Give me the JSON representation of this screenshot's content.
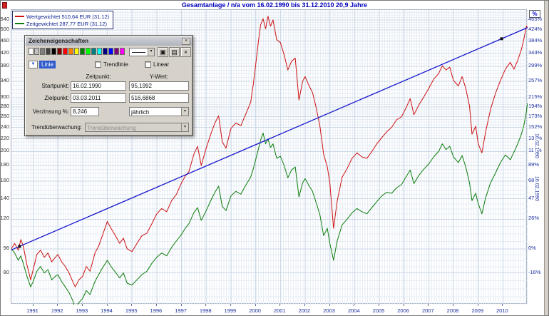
{
  "window": {
    "title": "Gesamtanlage / n/a vom 16.02.1990 bis 31.12.2010 20,9 Jahre"
  },
  "legend": {
    "items": [
      {
        "label": "Wertgewichtet 510,64 EUR (31.12)",
        "color": "#cc1111"
      },
      {
        "label": "Zeitgewichtet 287,77 EUR (31.12)",
        "color": "#0b7d0b"
      }
    ]
  },
  "axes": {
    "left_values": [
      540,
      500,
      460,
      420,
      380,
      340,
      300,
      280,
      260,
      240,
      220,
      200,
      180,
      160,
      140,
      120,
      96,
      80
    ],
    "right_labels": [
      "465%",
      "424%",
      "384%",
      "344%",
      "299%",
      "257%",
      "215%",
      "194%",
      "173%",
      "152%",
      "131%",
      "110%",
      "89%",
      "68%",
      "47%",
      "26%",
      "0%",
      "-16%"
    ],
    "right_header": "%",
    "years": [
      1991,
      1992,
      1993,
      1994,
      1995,
      1996,
      1997,
      1998,
      1999,
      2000,
      2001,
      2002,
      2003,
      2004,
      2005,
      2006,
      2007,
      2008,
      2009,
      2010
    ],
    "rotated_labels": [
      "16.02.1990",
      "16.02.1990"
    ]
  },
  "dialog": {
    "title": "Zeicheneigenschaften",
    "palette": [
      "#ffffff",
      "#c0c0c0",
      "#808080",
      "#404040",
      "#000000",
      "#800000",
      "#ff0000",
      "#ff8000",
      "#ffff00",
      "#008000",
      "#00ff00",
      "#008080",
      "#00ffff",
      "#000080",
      "#0000ff",
      "#800080",
      "#ff00ff"
    ],
    "line_selector_label": "Linie",
    "checkbox1": "Trendlinie",
    "checkbox2": "Linear",
    "header_time": "Zeitpunkt:",
    "header_y": "Y-Wert:",
    "start_label": "Startpunkt:",
    "start_time": "16.02.1990",
    "start_y": "95,1992",
    "end_label": "Zielpunkt:",
    "end_time": "03.03.2011",
    "end_y": "516,6868",
    "interest_label": "Verzinsung %:",
    "interest_value": "8,246",
    "interest_period": "jährlich",
    "monitor_label": "Trendüberwachung:",
    "monitor_value": "Trendüberwachung",
    "close_glyph": "×",
    "copy_glyph": "▣",
    "paste_glyph": "▤",
    "delete_glyph": "×"
  },
  "chart_data": {
    "type": "line",
    "title": "Gesamtanlage / n/a vom 16.02.1990 bis 31.12.2010 20,9 Jahre",
    "x_range": [
      1990.12,
      2011.0
    ],
    "y_scale": "log",
    "y_range": [
      63,
      582
    ],
    "legend_position": "top-left",
    "x": [
      1990.12,
      1990.25,
      1990.4,
      1990.5,
      1990.6,
      1990.75,
      1990.9,
      1991.0,
      1991.15,
      1991.3,
      1991.45,
      1991.6,
      1991.75,
      1991.9,
      1992.0,
      1992.15,
      1992.3,
      1992.45,
      1992.6,
      1992.7,
      1992.85,
      1993.0,
      1993.15,
      1993.3,
      1993.5,
      1993.65,
      1993.8,
      1994.0,
      1994.15,
      1994.3,
      1994.5,
      1994.65,
      1994.8,
      1995.0,
      1995.2,
      1995.4,
      1995.6,
      1995.8,
      1996.0,
      1996.2,
      1996.4,
      1996.6,
      1996.8,
      1997.0,
      1997.15,
      1997.3,
      1997.5,
      1997.65,
      1997.8,
      1998.0,
      1998.2,
      1998.35,
      1998.5,
      1998.65,
      1998.8,
      1999.0,
      1999.2,
      1999.4,
      1999.6,
      1999.8,
      1999.9,
      2000.0,
      2000.1,
      2000.2,
      2000.3,
      2000.4,
      2000.5,
      2000.6,
      2000.7,
      2000.85,
      2001.0,
      2001.15,
      2001.3,
      2001.45,
      2001.6,
      2001.75,
      2001.9,
      2002.0,
      2002.15,
      2002.3,
      2002.45,
      2002.6,
      2002.75,
      2002.9,
      2003.0,
      2003.15,
      2003.3,
      2003.5,
      2003.7,
      2003.9,
      2004.1,
      2004.3,
      2004.5,
      2004.7,
      2004.9,
      2005.1,
      2005.3,
      2005.5,
      2005.7,
      2005.9,
      2006.1,
      2006.25,
      2006.4,
      2006.6,
      2006.8,
      2007.0,
      2007.2,
      2007.4,
      2007.55,
      2007.7,
      2007.85,
      2008.0,
      2008.2,
      2008.35,
      2008.5,
      2008.65,
      2008.75,
      2008.9,
      2009.0,
      2009.15,
      2009.3,
      2009.5,
      2009.7,
      2009.9,
      2010.1,
      2010.3,
      2010.45,
      2010.6,
      2010.75,
      2010.85,
      2010.95,
      2010.99
    ],
    "series": [
      {
        "name": "Wertgewichtet",
        "color": "#cc1111",
        "values": [
          96,
          100,
          95,
          103,
          98,
          85,
          76,
          82,
          92,
          95,
          90,
          93,
          87,
          90,
          92,
          87,
          84,
          80,
          75,
          72,
          76,
          78,
          84,
          81,
          93,
          98,
          106,
          118,
          112,
          107,
          100,
          104,
          96,
          94,
          100,
          106,
          108,
          116,
          125,
          130,
          127,
          138,
          145,
          158,
          166,
          172,
          196,
          208,
          180,
          205,
          230,
          248,
          262,
          215,
          205,
          238,
          248,
          243,
          265,
          290,
          330,
          385,
          450,
          520,
          545,
          505,
          555,
          515,
          540,
          465,
          455,
          415,
          370,
          395,
          405,
          295,
          340,
          352,
          330,
          312,
          278,
          242,
          196,
          178,
          158,
          112,
          138,
          165,
          176,
          190,
          198,
          192,
          190,
          200,
          212,
          222,
          232,
          240,
          254,
          260,
          280,
          298,
          264,
          284,
          302,
          322,
          345,
          360,
          382,
          370,
          378,
          342,
          328,
          352,
          322,
          282,
          228,
          242,
          212,
          198,
          232,
          275,
          310,
          342,
          372,
          392,
          372,
          398,
          432,
          468,
          515,
          511
        ]
      },
      {
        "name": "Zeitgewichtet",
        "color": "#0b7d0b",
        "values": [
          96,
          93,
          88,
          91,
          86,
          78,
          72,
          75,
          81,
          84,
          80,
          82,
          76,
          78,
          79,
          75,
          72,
          69,
          65,
          61,
          64,
          66,
          70,
          68,
          75,
          79,
          83,
          88,
          84,
          81,
          77,
          80,
          74,
          73,
          76,
          79,
          81,
          86,
          90,
          93,
          91,
          97,
          102,
          107,
          112,
          116,
          126,
          131,
          119,
          128,
          139,
          147,
          154,
          132,
          128,
          143,
          148,
          145,
          155,
          165,
          175,
          188,
          202,
          218,
          230,
          212,
          220,
          206,
          212,
          190,
          193,
          180,
          164,
          174,
          178,
          142,
          158,
          163,
          155,
          148,
          136,
          124,
          106,
          112,
          100,
          88,
          102,
          115,
          120,
          126,
          130,
          127,
          125,
          131,
          137,
          143,
          147,
          146,
          152,
          156,
          166,
          174,
          157,
          167,
          175,
          182,
          192,
          200,
          212,
          203,
          208,
          192,
          184,
          194,
          178,
          158,
          138,
          146,
          135,
          125,
          141,
          158,
          170,
          184,
          195,
          188,
          199,
          212,
          228,
          244,
          270,
          288
        ]
      }
    ],
    "trend": {
      "name": "Trendlinie",
      "color": "#1515cc",
      "x": [
        1990.12,
        2011.17
      ],
      "values": [
        95.1992,
        516.6868
      ]
    }
  }
}
